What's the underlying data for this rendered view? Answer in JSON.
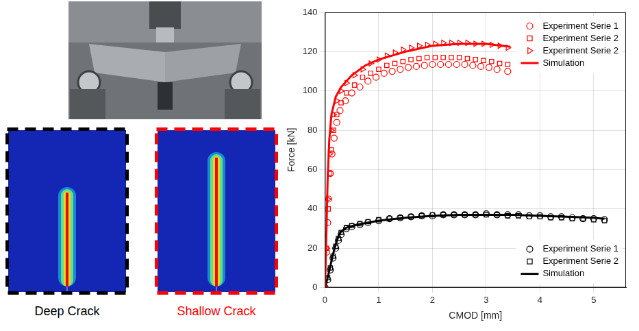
{
  "panels": [
    {
      "label": "Deep Crack",
      "color": "#000000"
    },
    {
      "label": "Shallow Crack",
      "color": "#ff0000"
    }
  ],
  "chart_data": [
    {
      "type": "scatter",
      "x_label": "CMOD [mm]",
      "y_label": "Force [kN]",
      "xlim": [
        0,
        5.6
      ],
      "xticks": [
        0,
        1,
        2,
        3,
        4,
        5
      ],
      "ylim": [
        0,
        140
      ],
      "yticks": [
        0,
        20,
        40,
        60,
        80,
        100,
        120,
        140
      ],
      "grid": true,
      "legend": "upper right",
      "series": [
        {
          "name": "Experiment Serie 1",
          "color": "#ff0000",
          "marker": "circle",
          "x": [
            0,
            0.03,
            0.05,
            0.07,
            0.1,
            0.13,
            0.17,
            0.22,
            0.28,
            0.38,
            0.5,
            0.65,
            0.8,
            0.95,
            1.1,
            1.25,
            1.4,
            1.55,
            1.7,
            1.85,
            2.0,
            2.15,
            2.3,
            2.45,
            2.6,
            2.75,
            2.9,
            3.05,
            3.2,
            3.4
          ],
          "values": [
            0,
            18,
            33,
            45,
            58,
            68,
            76,
            84,
            90,
            95,
            99,
            102,
            105,
            107,
            109,
            110,
            111,
            112,
            112.5,
            113,
            113.5,
            113.5,
            113.5,
            113.5,
            113.5,
            113,
            112.5,
            112,
            111,
            110
          ]
        },
        {
          "name": "Experiment Serie 2",
          "color": "#ff0000",
          "marker": "square",
          "x": [
            0,
            0.03,
            0.06,
            0.09,
            0.12,
            0.16,
            0.22,
            0.3,
            0.4,
            0.55,
            0.7,
            0.85,
            1.0,
            1.15,
            1.3,
            1.45,
            1.6,
            1.75,
            1.9,
            2.05,
            2.2,
            2.35,
            2.5,
            2.65,
            2.8,
            2.95,
            3.1,
            3.25,
            3.4
          ],
          "values": [
            0,
            20,
            40,
            58,
            70,
            80,
            88,
            94,
            99,
            103,
            107,
            109,
            111,
            113,
            114,
            115,
            116,
            116.5,
            117,
            117,
            117,
            117,
            117,
            116.5,
            116,
            115.5,
            115,
            114,
            113.5
          ]
        },
        {
          "name": "Experiment Serie 2",
          "color": "#ff0000",
          "marker": "triangle-right",
          "x": [
            0,
            0.03,
            0.06,
            0.09,
            0.12,
            0.16,
            0.22,
            0.3,
            0.4,
            0.55,
            0.7,
            0.85,
            1.0,
            1.15,
            1.3,
            1.45,
            1.6,
            1.75,
            1.9,
            2.05,
            2.2,
            2.35,
            2.5,
            2.65,
            2.8,
            2.95,
            3.1,
            3.25,
            3.4
          ],
          "values": [
            0,
            20,
            45,
            68,
            80,
            88,
            95,
            100,
            104,
            108,
            111,
            114,
            116,
            118,
            119.5,
            121,
            122,
            123,
            123.5,
            124,
            124.5,
            124.5,
            124.5,
            124.5,
            124,
            124,
            123.5,
            123,
            122
          ]
        },
        {
          "name": "Simulation",
          "color": "#ff0000",
          "type": "line",
          "line_style": "solid",
          "x": [
            0,
            0.02,
            0.05,
            0.08,
            0.12,
            0.2,
            0.3,
            0.5,
            0.75,
            1.0,
            1.5,
            2.0,
            2.5,
            3.0,
            3.3,
            3.45
          ],
          "values": [
            0,
            20,
            55,
            75,
            88,
            97,
            102,
            108,
            113,
            116,
            120,
            123,
            124,
            124,
            123,
            122.5
          ]
        }
      ]
    },
    {
      "type": "scatter",
      "legend": "lower right",
      "series": [
        {
          "name": "Experiment Serie 1",
          "color": "#000000",
          "marker": "circle",
          "x": [
            0,
            0.05,
            0.1,
            0.15,
            0.2,
            0.25,
            0.3,
            0.4,
            0.5,
            0.65,
            0.8,
            1.0,
            1.2,
            1.4,
            1.6,
            1.8,
            2.0,
            2.2,
            2.4,
            2.6,
            2.8,
            3.0,
            3.2,
            3.4,
            3.6,
            3.8,
            4.0,
            4.2,
            4.4,
            4.6,
            4.8,
            5.0,
            5.2
          ],
          "values": [
            0,
            4,
            9,
            15,
            20,
            24,
            27,
            30,
            31,
            32,
            33,
            34,
            35,
            35.5,
            36,
            36.5,
            36.5,
            37,
            37,
            37,
            37,
            37.5,
            37,
            37,
            37,
            36.5,
            36.5,
            36,
            36,
            35.5,
            35,
            35,
            34.5
          ]
        },
        {
          "name": "Experiment Serie 2",
          "color": "#000000",
          "marker": "square",
          "x": [
            0,
            0.05,
            0.1,
            0.15,
            0.2,
            0.25,
            0.3,
            0.4,
            0.5,
            0.65,
            0.8,
            1.0,
            1.2,
            1.4,
            1.6,
            1.8,
            2.0,
            2.2,
            2.4,
            2.6,
            2.8,
            3.0,
            3.2,
            3.4,
            3.6,
            3.8,
            4.0,
            4.2,
            4.4,
            4.6,
            4.8,
            5.0,
            5.2
          ],
          "values": [
            0,
            5,
            10,
            16,
            21,
            25,
            28,
            30.5,
            31.5,
            32.5,
            33.5,
            34.5,
            35,
            35.5,
            36,
            36.5,
            37,
            37,
            37,
            37,
            37,
            37,
            37,
            36.5,
            36.5,
            36,
            36,
            35.5,
            35.5,
            35,
            35,
            34.5,
            34
          ]
        },
        {
          "name": "Simulation",
          "color": "#000000",
          "type": "line",
          "line_style": "solid",
          "x": [
            0,
            0.05,
            0.1,
            0.15,
            0.2,
            0.25,
            0.3,
            0.4,
            0.6,
            1.0,
            1.5,
            2.0,
            2.5,
            3.0,
            3.5,
            4.0,
            4.5,
            5.0,
            5.2
          ],
          "values": [
            0,
            5,
            11,
            17,
            22,
            26,
            28.5,
            30.5,
            32,
            34,
            35.5,
            36.5,
            37,
            37,
            37,
            36.5,
            36,
            35.5,
            35
          ]
        }
      ]
    }
  ]
}
